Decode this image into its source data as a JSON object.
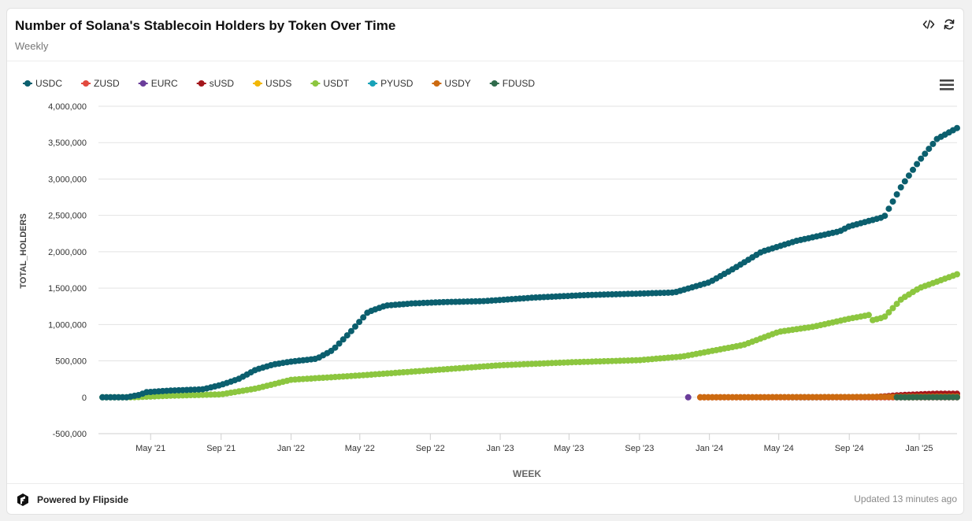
{
  "header": {
    "title": "Number of Solana's Stablecoin Holders by Token Over Time",
    "subtitle": "Weekly",
    "embed_icon": "code-icon",
    "refresh_icon": "refresh-icon"
  },
  "footer": {
    "brand": "Powered by Flipside",
    "brand_icon": "flipside-logo",
    "updated": "Updated 13 minutes ago"
  },
  "chart_data": {
    "type": "scatter",
    "xlabel": "WEEK",
    "ylabel": "TOTAL_HOLDERS",
    "ylim": [
      -500000,
      4000000
    ],
    "yticks": [
      -500000,
      0,
      500000,
      1000000,
      1500000,
      2000000,
      2500000,
      3000000,
      3500000,
      4000000
    ],
    "ytick_labels": [
      "-500,000",
      "0",
      "500,000",
      "1,000,000",
      "1,500,000",
      "2,000,000",
      "2,500,000",
      "3,000,000",
      "3,500,000",
      "4,000,000"
    ],
    "xlim": [
      "2021-01-30",
      "2025-03-08"
    ],
    "xticks": [
      "2021-05-01",
      "2021-09-01",
      "2022-01-01",
      "2022-05-01",
      "2022-09-01",
      "2023-01-01",
      "2023-05-01",
      "2023-09-01",
      "2024-01-01",
      "2024-05-01",
      "2024-09-01",
      "2025-01-01"
    ],
    "xtick_labels": [
      "May '21",
      "Sep '21",
      "Jan '22",
      "May '22",
      "Sep '22",
      "Jan '23",
      "May '23",
      "Sep '23",
      "Jan '24",
      "May '24",
      "Sep '24",
      "Jan '25"
    ],
    "legend_position": "top-left",
    "grid": true,
    "series": [
      {
        "name": "USDC",
        "color": "#0b5f6e",
        "start": "2021-02-06",
        "end": "2025-03-08",
        "anchors": [
          [
            "2021-02-06",
            0
          ],
          [
            "2021-03-20",
            0
          ],
          [
            "2021-04-10",
            30000
          ],
          [
            "2021-04-24",
            70000
          ],
          [
            "2021-06-01",
            90000
          ],
          [
            "2021-08-01",
            110000
          ],
          [
            "2021-09-01",
            170000
          ],
          [
            "2021-10-01",
            250000
          ],
          [
            "2021-11-01",
            380000
          ],
          [
            "2021-12-01",
            450000
          ],
          [
            "2022-01-01",
            490000
          ],
          [
            "2022-02-15",
            530000
          ],
          [
            "2022-03-15",
            650000
          ],
          [
            "2022-04-15",
            900000
          ],
          [
            "2022-05-15",
            1170000
          ],
          [
            "2022-06-15",
            1260000
          ],
          [
            "2022-08-01",
            1290000
          ],
          [
            "2022-10-01",
            1310000
          ],
          [
            "2022-12-01",
            1320000
          ],
          [
            "2023-03-01",
            1370000
          ],
          [
            "2023-06-01",
            1405000
          ],
          [
            "2023-09-01",
            1425000
          ],
          [
            "2023-11-01",
            1440000
          ],
          [
            "2024-01-01",
            1580000
          ],
          [
            "2024-02-15",
            1780000
          ],
          [
            "2024-04-01",
            2000000
          ],
          [
            "2024-06-01",
            2150000
          ],
          [
            "2024-08-15",
            2280000
          ],
          [
            "2024-09-01",
            2350000
          ],
          [
            "2024-11-01",
            2480000
          ],
          [
            "2024-12-01",
            2900000
          ],
          [
            "2025-01-01",
            3250000
          ],
          [
            "2025-02-01",
            3550000
          ],
          [
            "2025-03-08",
            3700000
          ]
        ]
      },
      {
        "name": "ZUSD",
        "color": "#e24a3f",
        "start": "2023-12-16",
        "end": "2025-03-08",
        "anchors": [
          [
            "2023-12-16",
            0
          ],
          [
            "2025-03-08",
            0
          ]
        ]
      },
      {
        "name": "EURC",
        "color": "#6a3d9a",
        "start": "2023-11-25",
        "end": "2023-11-25",
        "anchors": [
          [
            "2023-11-25",
            0
          ]
        ]
      },
      {
        "name": "sUSD",
        "color": "#a3161b",
        "start": "2024-10-19",
        "end": "2025-03-08",
        "anchors": [
          [
            "2024-10-19",
            5000
          ],
          [
            "2024-12-01",
            30000
          ],
          [
            "2025-02-01",
            50000
          ],
          [
            "2025-03-08",
            48000
          ]
        ]
      },
      {
        "name": "USDS",
        "color": "#f2b705",
        "start": "2024-12-14",
        "end": "2025-03-08",
        "anchors": [
          [
            "2024-12-14",
            0
          ],
          [
            "2025-03-08",
            5000
          ]
        ]
      },
      {
        "name": "USDT",
        "color": "#8cc63f",
        "start": "2021-02-06",
        "end": "2025-03-08",
        "anchors": [
          [
            "2021-02-06",
            0
          ],
          [
            "2021-04-01",
            0
          ],
          [
            "2021-06-01",
            20000
          ],
          [
            "2021-09-01",
            40000
          ],
          [
            "2021-11-01",
            120000
          ],
          [
            "2022-01-01",
            240000
          ],
          [
            "2022-05-01",
            300000
          ],
          [
            "2022-09-01",
            370000
          ],
          [
            "2023-01-01",
            440000
          ],
          [
            "2023-05-01",
            480000
          ],
          [
            "2023-09-01",
            510000
          ],
          [
            "2023-11-15",
            560000
          ],
          [
            "2024-01-01",
            630000
          ],
          [
            "2024-03-01",
            720000
          ],
          [
            "2024-05-01",
            900000
          ],
          [
            "2024-07-01",
            970000
          ],
          [
            "2024-09-01",
            1080000
          ],
          [
            "2024-10-05",
            1130000
          ],
          [
            "2024-10-12",
            1060000
          ],
          [
            "2024-11-01",
            1100000
          ],
          [
            "2024-12-01",
            1350000
          ],
          [
            "2025-01-01",
            1500000
          ],
          [
            "2025-03-08",
            1690000
          ]
        ]
      },
      {
        "name": "PYUSD",
        "color": "#17a2b8",
        "start": "2024-05-25",
        "end": "2025-03-08",
        "anchors": [
          [
            "2024-05-25",
            0
          ],
          [
            "2025-03-08",
            2000
          ]
        ]
      },
      {
        "name": "USDY",
        "color": "#cc6a10",
        "start": "2023-12-16",
        "end": "2025-03-08",
        "anchors": [
          [
            "2023-12-16",
            0
          ],
          [
            "2024-09-01",
            3000
          ],
          [
            "2025-03-08",
            12000
          ]
        ]
      },
      {
        "name": "FDUSD",
        "color": "#2f6b4c",
        "start": "2024-11-23",
        "end": "2025-03-08",
        "anchors": [
          [
            "2024-11-23",
            0
          ],
          [
            "2025-03-08",
            1000
          ]
        ]
      }
    ]
  }
}
